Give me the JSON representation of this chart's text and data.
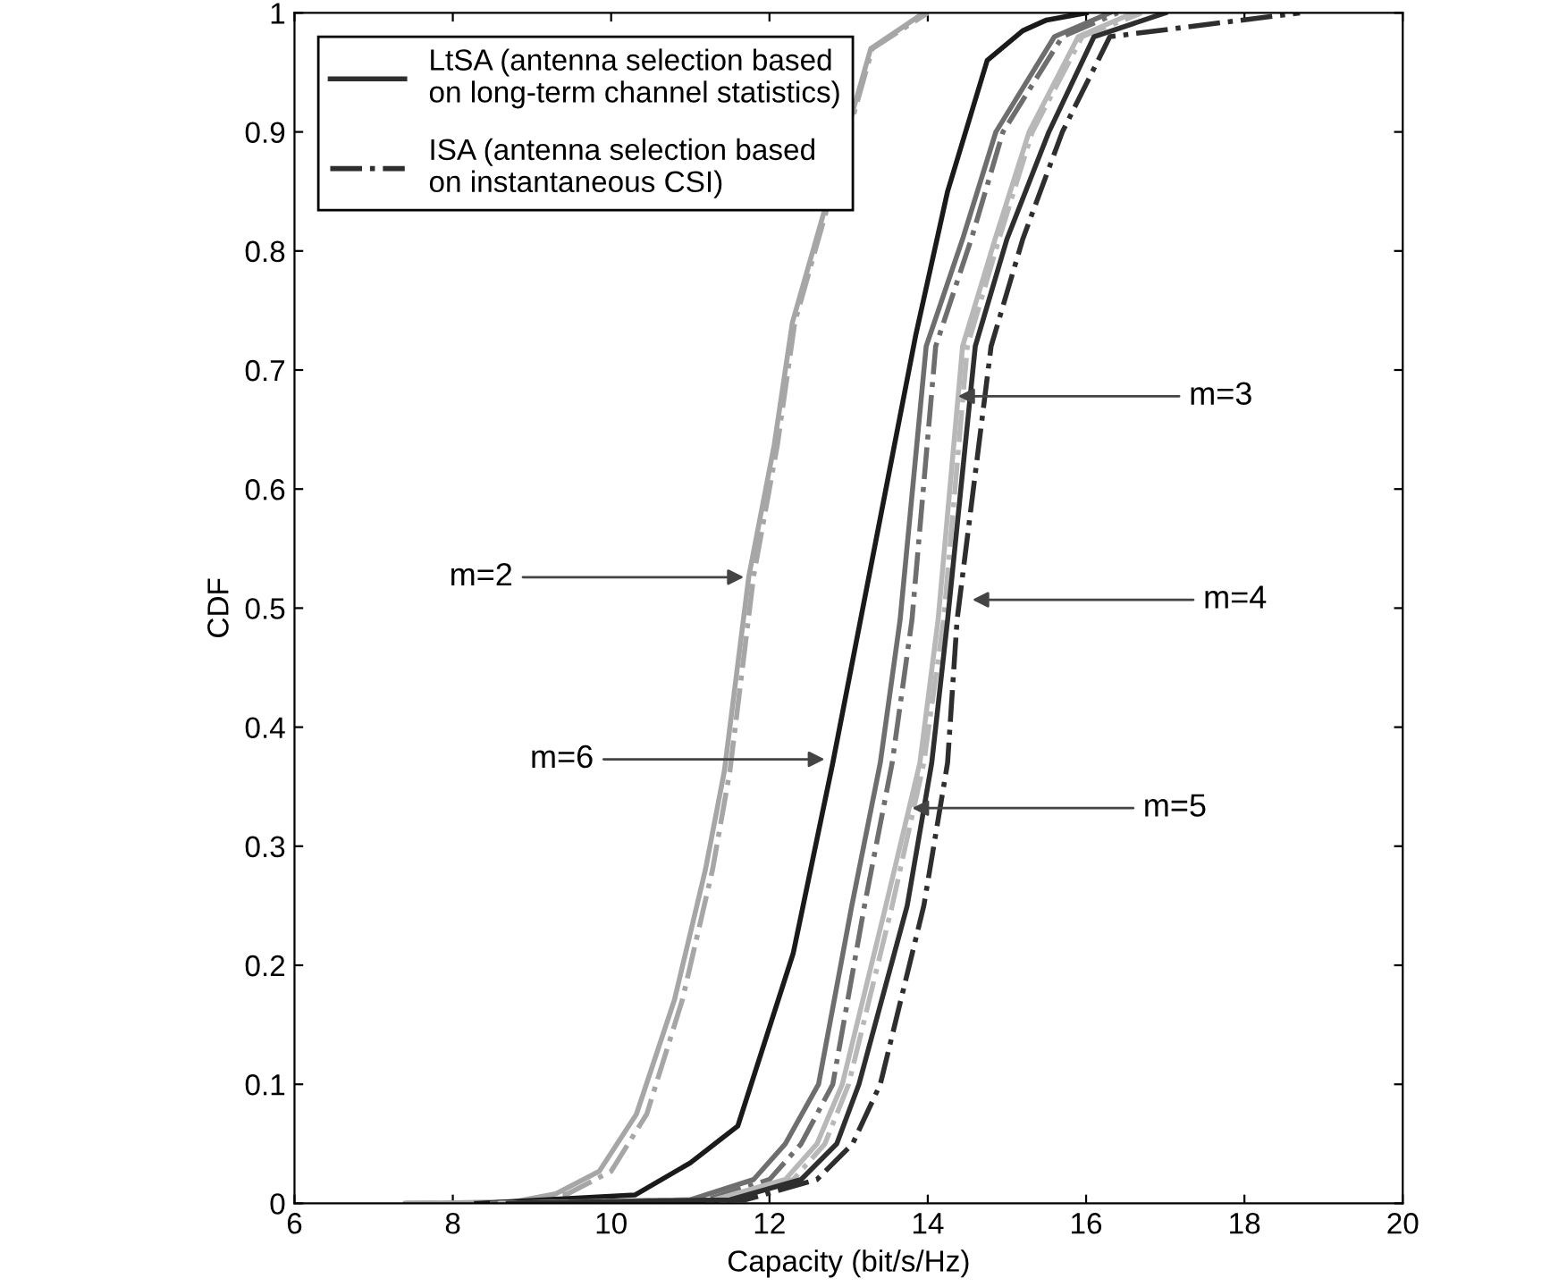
{
  "chart_data": {
    "type": "line",
    "xlabel": "Capacity (bit/s/Hz)",
    "ylabel": "CDF",
    "xlim": [
      6,
      20
    ],
    "ylim": [
      0,
      1
    ],
    "xticks": [
      6,
      8,
      10,
      12,
      14,
      16,
      18,
      20
    ],
    "yticks": [
      0,
      0.1,
      0.2,
      0.3,
      0.4,
      0.5,
      0.6,
      0.7,
      0.8,
      0.9,
      1
    ],
    "grid": false,
    "legend": "top left",
    "marker": "none",
    "series": [
      {
        "color": "#a6a6a6",
        "line_style": "solid",
        "x": [
          7.4,
          8.75,
          9.3,
          9.85,
          10.32,
          10.8,
          11.19,
          11.43,
          11.74,
          12.06,
          12.29,
          13.28,
          13.95
        ],
        "values": [
          0,
          0.001,
          0.008,
          0.027,
          0.075,
          0.171,
          0.28,
          0.363,
          0.527,
          0.637,
          0.74,
          0.97,
          1.0
        ]
      },
      {
        "color": "#a6a6a6",
        "line_style": "dashdot",
        "x": [
          7.4,
          8.8,
          9.45,
          10.0,
          10.45,
          10.9,
          11.28,
          11.5,
          11.8,
          12.1,
          12.32,
          13.3,
          14.0
        ],
        "values": [
          0,
          0.001,
          0.008,
          0.027,
          0.075,
          0.171,
          0.28,
          0.363,
          0.527,
          0.637,
          0.74,
          0.97,
          1.0
        ]
      },
      {
        "color": "#1a1a1a",
        "line_style": "solid",
        "x": [
          8.3,
          10.3,
          11.0,
          11.6,
          12.3,
          12.8,
          13.15,
          13.5,
          13.85,
          14.25,
          14.75,
          15.2,
          15.5,
          16.0
        ],
        "values": [
          0,
          0.007,
          0.034,
          0.065,
          0.21,
          0.37,
          0.49,
          0.61,
          0.73,
          0.85,
          0.96,
          0.985,
          0.994,
          1.0
        ]
      },
      {
        "color": "#6e6e6e",
        "line_style": "solid",
        "x": [
          8.5,
          11.0,
          11.8,
          12.2,
          12.62,
          13.04,
          13.4,
          13.65,
          13.98,
          14.44,
          14.86,
          15.6,
          16.3
        ],
        "values": [
          0,
          0.003,
          0.02,
          0.05,
          0.1,
          0.25,
          0.37,
          0.49,
          0.72,
          0.81,
          0.9,
          0.98,
          1.0
        ]
      },
      {
        "color": "#6e6e6e",
        "line_style": "dashdot",
        "x": [
          8.6,
          11.2,
          12.0,
          12.4,
          12.8,
          13.2,
          13.55,
          13.8,
          14.1,
          14.55,
          14.95,
          15.7,
          16.4
        ],
        "values": [
          0,
          0.003,
          0.02,
          0.05,
          0.1,
          0.25,
          0.37,
          0.49,
          0.72,
          0.81,
          0.9,
          0.98,
          1.0
        ]
      },
      {
        "color": "#b8b8b8",
        "line_style": "solid",
        "x": [
          8.6,
          11.3,
          12.2,
          12.6,
          12.92,
          13.47,
          13.9,
          14.13,
          14.44,
          14.85,
          15.28,
          15.9,
          16.6
        ],
        "values": [
          0,
          0.003,
          0.02,
          0.05,
          0.1,
          0.25,
          0.37,
          0.49,
          0.72,
          0.81,
          0.9,
          0.98,
          1.0
        ]
      },
      {
        "color": "#b8b8b8",
        "line_style": "dashdot",
        "x": [
          8.7,
          11.4,
          12.3,
          12.7,
          13.0,
          13.55,
          13.95,
          14.2,
          14.5,
          14.9,
          15.32,
          15.95,
          16.7
        ],
        "values": [
          0,
          0.003,
          0.02,
          0.05,
          0.1,
          0.25,
          0.37,
          0.49,
          0.72,
          0.81,
          0.9,
          0.98,
          1.0
        ]
      },
      {
        "name": "LtSA (antenna selection based\non long-term channel statistics)",
        "color": "#2e2e2e",
        "line_style": "solid",
        "x": [
          8.7,
          11.5,
          12.4,
          12.85,
          13.13,
          13.74,
          14.05,
          14.25,
          14.6,
          15.0,
          15.53,
          16.1,
          17.0
        ],
        "values": [
          0,
          0.003,
          0.02,
          0.05,
          0.1,
          0.25,
          0.37,
          0.49,
          0.72,
          0.81,
          0.9,
          0.98,
          1.0
        ]
      },
      {
        "name": "ISA (antenna selection based\non instantaneous CSI)",
        "color": "#2e2e2e",
        "line_style": "dashdot",
        "x": [
          8.8,
          11.7,
          12.6,
          13.05,
          13.4,
          13.95,
          14.25,
          14.37,
          14.8,
          15.2,
          15.7,
          16.3,
          18.7
        ],
        "values": [
          0,
          0.003,
          0.02,
          0.05,
          0.1,
          0.25,
          0.37,
          0.49,
          0.72,
          0.81,
          0.9,
          0.98,
          1.0
        ]
      }
    ],
    "annotations": [
      {
        "text": "m=2",
        "x": 11.74,
        "y": 0.526
      },
      {
        "text": "m=6",
        "x": 12.76,
        "y": 0.373
      },
      {
        "text": "m=3",
        "x": 14.32,
        "y": 0.678
      },
      {
        "text": "m=4",
        "x": 14.5,
        "y": 0.507
      },
      {
        "text": "m=5",
        "x": 13.74,
        "y": 0.332
      }
    ]
  }
}
